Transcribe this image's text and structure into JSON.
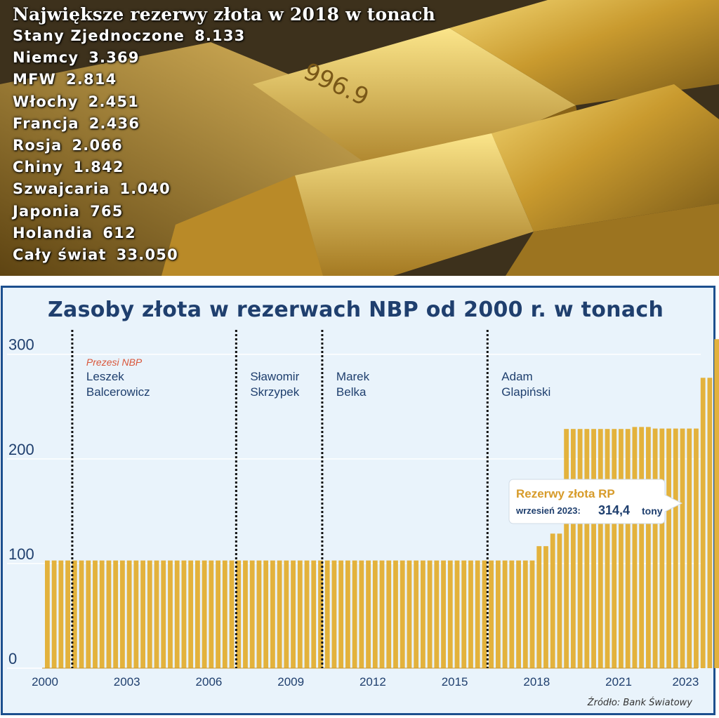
{
  "ranking": {
    "title": "Największe rezerwy złota w 2018 w tonach",
    "rows": [
      {
        "name": "Stany Zjednoczone",
        "value": "8.133"
      },
      {
        "name": "Niemcy",
        "value": "3.369"
      },
      {
        "name": "MFW",
        "value": "2.814"
      },
      {
        "name": "Włochy",
        "value": "2.451"
      },
      {
        "name": "Francja",
        "value": "2.436"
      },
      {
        "name": "Rosja",
        "value": "2.066"
      },
      {
        "name": "Chiny",
        "value": "1.842"
      },
      {
        "name": "Szwajcaria",
        "value": "1.040"
      },
      {
        "name": "Japonia",
        "value": "765"
      },
      {
        "name": "Holandia",
        "value": "612"
      },
      {
        "name": "Cały świat",
        "value": "33.050"
      }
    ]
  },
  "photo_text": {
    "bar_stamp": "996.9"
  },
  "chart_data": {
    "type": "bar",
    "title": "Zasoby złota w rezerwach NBP od 2000 r. w tonach",
    "ylim": [
      0,
      330
    ],
    "yticks": [
      0,
      100,
      200,
      300
    ],
    "xticks": [
      "2000",
      "2003",
      "2006",
      "2009",
      "2012",
      "2015",
      "2018",
      "2021",
      "2023"
    ],
    "xtick_years": [
      2000,
      2003,
      2006,
      2009,
      2012,
      2015,
      2018,
      2021,
      2023.45
    ],
    "x_start_year": 2000,
    "x_end_year": 2023.8,
    "bars": {
      "start_year": 2000,
      "step_years": 0.25
    },
    "values": [
      102.9,
      102.9,
      102.9,
      102.9,
      102.9,
      102.9,
      102.9,
      102.9,
      102.9,
      102.9,
      102.9,
      102.9,
      102.9,
      102.9,
      102.9,
      102.9,
      102.9,
      102.9,
      102.9,
      102.9,
      102.9,
      102.9,
      102.9,
      102.9,
      102.9,
      102.9,
      102.9,
      102.9,
      102.9,
      102.9,
      102.9,
      102.9,
      102.9,
      102.9,
      102.9,
      102.9,
      102.9,
      102.9,
      102.9,
      102.9,
      102.9,
      102.9,
      102.9,
      102.9,
      102.9,
      102.9,
      102.9,
      102.9,
      102.9,
      102.9,
      102.9,
      102.9,
      102.9,
      102.9,
      102.9,
      102.9,
      102.9,
      102.9,
      102.9,
      102.9,
      102.9,
      102.9,
      102.9,
      102.9,
      102.9,
      102.9,
      102.9,
      102.9,
      102.9,
      102.9,
      102.9,
      102.9,
      116.6,
      116.6,
      128.6,
      128.6,
      228.6,
      228.6,
      228.6,
      228.6,
      228.6,
      228.6,
      228.6,
      228.6,
      228.6,
      228.6,
      230.5,
      230.5,
      230.5,
      229.0,
      229.0,
      229.0,
      229.0,
      229.0,
      229.0,
      229.0,
      277.5,
      277.5,
      314.4
    ],
    "presidents_label": "Prezesi NBP",
    "presidents": [
      {
        "line1": "Leszek",
        "line2": "Balcerowicz",
        "from_year": 2001.0
      },
      {
        "line1": "Sławomir",
        "line2": "Skrzypek",
        "from_year": 2007.0
      },
      {
        "line1": "Marek",
        "line2": "Belka",
        "from_year": 2010.15
      },
      {
        "line1": "Adam",
        "line2": "Glapiński",
        "from_year": 2016.2
      }
    ],
    "callout": {
      "title": "Rezerwy złota RP",
      "date": "wrzesień 2023:",
      "value": "314,4",
      "unit": "tony"
    },
    "source": "Źródło: Bank Światowy",
    "colors": {
      "bar": "#e3b23c",
      "bar_dark": "#c8952a",
      "title": "#1f3f6e",
      "label": "#1f3f6e",
      "presidents_label": "#d9563a",
      "callout_title": "#d79b2a",
      "callout_text": "#1f3f6e",
      "background": "#e9f3fb",
      "frame": "#1c4f8e"
    }
  }
}
